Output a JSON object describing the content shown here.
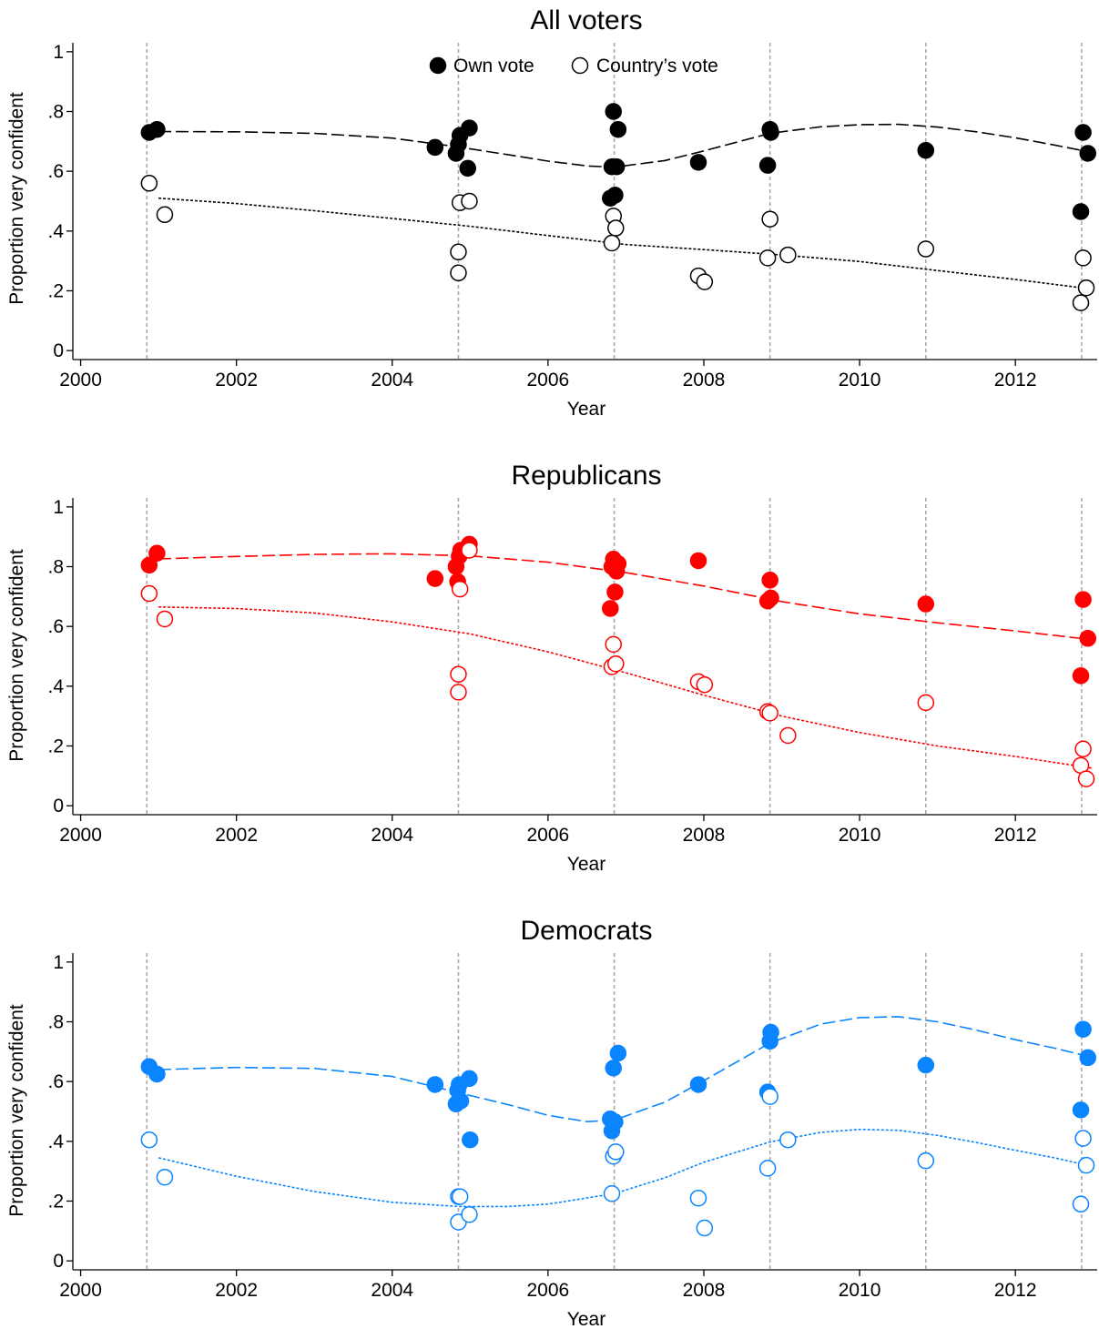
{
  "chart_data": [
    {
      "type": "scatter",
      "title": "All voters",
      "xlabel": "Year",
      "ylabel": "Proportion very confident",
      "xlim": [
        1999.9,
        2013.05
      ],
      "ylim": [
        -0.03,
        1.03
      ],
      "xticks": [
        2000,
        2002,
        2004,
        2006,
        2008,
        2010,
        2012
      ],
      "xtick_labels": [
        "2000",
        "2002",
        "2004",
        "2006",
        "2008",
        "2010",
        "2012"
      ],
      "yticks": [
        0,
        0.2,
        0.4,
        0.6,
        0.8,
        1
      ],
      "ytick_labels": [
        "0",
        ".2",
        ".4",
        ".6",
        ".8",
        "1"
      ],
      "election_lines": [
        2000.85,
        2004.85,
        2006.85,
        2008.85,
        2010.85,
        2012.85
      ],
      "colors": {
        "own": "#000000",
        "country": "#000000"
      },
      "legend": {
        "placement": "top-center",
        "entries": [
          "Own vote",
          "Country’s vote"
        ]
      },
      "series": [
        {
          "name": "Own vote",
          "marker": "filled",
          "x": [
            2000.88,
            2000.98,
            2004.55,
            2004.82,
            2004.85,
            2004.87,
            2004.97,
            2004.99,
            2006.8,
            2006.82,
            2006.84,
            2006.86,
            2006.88,
            2006.9,
            2007.93,
            2008.82,
            2008.85,
            2008.86,
            2010.85,
            2012.84,
            2012.87,
            2012.93
          ],
          "y": [
            0.73,
            0.74,
            0.68,
            0.66,
            0.69,
            0.72,
            0.61,
            0.745,
            0.51,
            0.615,
            0.8,
            0.52,
            0.615,
            0.74,
            0.63,
            0.62,
            0.74,
            0.73,
            0.67,
            0.465,
            0.73,
            0.66
          ]
        },
        {
          "name": "Country’s vote",
          "marker": "hollow",
          "x": [
            2000.88,
            2001.08,
            2004.85,
            2004.85,
            2004.87,
            2004.99,
            2006.82,
            2006.84,
            2006.87,
            2007.93,
            2008.01,
            2008.82,
            2008.85,
            2009.08,
            2010.85,
            2012.84,
            2012.87,
            2012.91
          ],
          "y": [
            0.56,
            0.455,
            0.26,
            0.33,
            0.495,
            0.5,
            0.36,
            0.45,
            0.41,
            0.25,
            0.23,
            0.31,
            0.44,
            0.32,
            0.34,
            0.16,
            0.31,
            0.21
          ]
        }
      ],
      "fit_lines": [
        {
          "series": "Own vote",
          "style": "long-dash",
          "x": [
            2001.0,
            2002.0,
            2003.0,
            2004.0,
            2004.8,
            2005.5,
            2006.0,
            2006.5,
            2006.85,
            2007.5,
            2008.0,
            2008.85,
            2009.5,
            2010.0,
            2010.5,
            2011.0,
            2011.5,
            2012.0,
            2012.5,
            2013.0
          ],
          "y": [
            0.733,
            0.732,
            0.727,
            0.711,
            0.683,
            0.655,
            0.634,
            0.618,
            0.614,
            0.636,
            0.668,
            0.727,
            0.749,
            0.756,
            0.757,
            0.748,
            0.732,
            0.712,
            0.688,
            0.662
          ]
        },
        {
          "series": "Country’s vote",
          "style": "dotted",
          "x": [
            2001.0,
            2002.0,
            2003.0,
            2004.0,
            2005.0,
            2006.0,
            2007.0,
            2008.0,
            2009.0,
            2010.0,
            2011.0,
            2012.0,
            2013.0
          ],
          "y": [
            0.51,
            0.492,
            0.468,
            0.442,
            0.416,
            0.385,
            0.355,
            0.338,
            0.32,
            0.298,
            0.268,
            0.238,
            0.205
          ]
        }
      ]
    },
    {
      "type": "scatter",
      "title": "Republicans",
      "xlabel": "Year",
      "ylabel": "Proportion very confident",
      "xlim": [
        1999.9,
        2013.05
      ],
      "ylim": [
        -0.03,
        1.03
      ],
      "xticks": [
        2000,
        2002,
        2004,
        2006,
        2008,
        2010,
        2012
      ],
      "xtick_labels": [
        "2000",
        "2002",
        "2004",
        "2006",
        "2008",
        "2010",
        "2012"
      ],
      "yticks": [
        0,
        0.2,
        0.4,
        0.6,
        0.8,
        1
      ],
      "ytick_labels": [
        "0",
        ".2",
        ".4",
        ".6",
        ".8",
        "1"
      ],
      "election_lines": [
        2000.85,
        2004.85,
        2006.85,
        2008.85,
        2010.85,
        2012.85
      ],
      "colors": {
        "own": "#ff0000",
        "country": "#ff0000"
      },
      "series": [
        {
          "name": "Own vote",
          "marker": "filled",
          "x": [
            2000.88,
            2000.98,
            2004.55,
            2004.82,
            2004.84,
            2004.86,
            2004.88,
            2004.99,
            2006.8,
            2006.82,
            2006.84,
            2006.86,
            2006.88,
            2006.9,
            2007.93,
            2008.82,
            2008.85,
            2008.86,
            2010.85,
            2012.84,
            2012.87,
            2012.93
          ],
          "y": [
            0.805,
            0.845,
            0.76,
            0.8,
            0.75,
            0.835,
            0.855,
            0.875,
            0.66,
            0.8,
            0.825,
            0.715,
            0.785,
            0.81,
            0.82,
            0.685,
            0.755,
            0.695,
            0.675,
            0.435,
            0.69,
            0.56
          ]
        },
        {
          "name": "Country’s vote",
          "marker": "hollow",
          "x": [
            2000.88,
            2001.08,
            2004.85,
            2004.85,
            2004.87,
            2004.99,
            2006.82,
            2006.84,
            2006.87,
            2007.93,
            2008.01,
            2008.82,
            2008.85,
            2009.08,
            2010.85,
            2012.84,
            2012.87,
            2012.91
          ],
          "y": [
            0.71,
            0.625,
            0.38,
            0.44,
            0.725,
            0.855,
            0.465,
            0.54,
            0.475,
            0.415,
            0.405,
            0.315,
            0.31,
            0.235,
            0.345,
            0.135,
            0.19,
            0.09
          ]
        }
      ],
      "fit_lines": [
        {
          "series": "Own vote",
          "style": "long-dash",
          "x": [
            2001.0,
            2002.0,
            2003.0,
            2004.0,
            2005.0,
            2006.0,
            2007.0,
            2008.0,
            2009.0,
            2010.0,
            2011.0,
            2012.0,
            2013.0
          ],
          "y": [
            0.826,
            0.834,
            0.841,
            0.843,
            0.836,
            0.815,
            0.78,
            0.735,
            0.683,
            0.642,
            0.612,
            0.585,
            0.555
          ]
        },
        {
          "series": "Country’s vote",
          "style": "dotted",
          "x": [
            2001.0,
            2002.0,
            2003.0,
            2004.0,
            2005.0,
            2006.0,
            2007.0,
            2008.0,
            2009.0,
            2010.0,
            2011.0,
            2012.0,
            2013.0
          ],
          "y": [
            0.665,
            0.66,
            0.645,
            0.615,
            0.575,
            0.515,
            0.445,
            0.37,
            0.3,
            0.245,
            0.2,
            0.165,
            0.125
          ]
        }
      ]
    },
    {
      "type": "scatter",
      "title": "Democrats",
      "xlabel": "Year",
      "ylabel": "Proportion very confident",
      "xlim": [
        1999.9,
        2013.05
      ],
      "ylim": [
        -0.03,
        1.03
      ],
      "xticks": [
        2000,
        2002,
        2004,
        2006,
        2008,
        2010,
        2012
      ],
      "xtick_labels": [
        "2000",
        "2002",
        "2004",
        "2006",
        "2008",
        "2010",
        "2012"
      ],
      "yticks": [
        0,
        0.2,
        0.4,
        0.6,
        0.8,
        1
      ],
      "ytick_labels": [
        "0",
        ".2",
        ".4",
        ".6",
        ".8",
        "1"
      ],
      "election_lines": [
        2000.85,
        2004.85,
        2006.85,
        2008.85,
        2010.85,
        2012.85
      ],
      "colors": {
        "own": "#0a84ff",
        "country": "#0a84ff"
      },
      "series": [
        {
          "name": "Own vote",
          "marker": "filled",
          "x": [
            2000.88,
            2000.98,
            2004.55,
            2004.82,
            2004.84,
            2004.86,
            2004.88,
            2004.99,
            2005.0,
            2006.8,
            2006.82,
            2006.84,
            2006.86,
            2006.9,
            2007.93,
            2008.82,
            2008.85,
            2008.86,
            2010.85,
            2012.84,
            2012.87,
            2012.93
          ],
          "y": [
            0.65,
            0.625,
            0.59,
            0.525,
            0.57,
            0.59,
            0.535,
            0.61,
            0.405,
            0.475,
            0.435,
            0.645,
            0.465,
            0.695,
            0.59,
            0.565,
            0.735,
            0.765,
            0.655,
            0.505,
            0.775,
            0.68
          ]
        },
        {
          "name": "Country’s vote",
          "marker": "hollow",
          "x": [
            2000.88,
            2001.08,
            2004.85,
            2004.85,
            2004.87,
            2004.99,
            2006.82,
            2006.84,
            2006.87,
            2007.93,
            2008.01,
            2008.82,
            2008.85,
            2009.08,
            2010.85,
            2012.84,
            2012.87,
            2012.91
          ],
          "y": [
            0.405,
            0.28,
            0.13,
            0.215,
            0.215,
            0.155,
            0.225,
            0.35,
            0.365,
            0.21,
            0.11,
            0.31,
            0.55,
            0.405,
            0.335,
            0.19,
            0.41,
            0.32
          ]
        }
      ],
      "fit_lines": [
        {
          "series": "Own vote",
          "style": "long-dash",
          "x": [
            2001.0,
            2002.0,
            2003.0,
            2004.0,
            2004.8,
            2005.5,
            2006.0,
            2006.5,
            2006.85,
            2007.5,
            2008.0,
            2008.85,
            2009.5,
            2010.0,
            2010.5,
            2011.0,
            2011.5,
            2012.0,
            2012.5,
            2013.0
          ],
          "y": [
            0.64,
            0.647,
            0.644,
            0.617,
            0.566,
            0.522,
            0.487,
            0.466,
            0.471,
            0.531,
            0.603,
            0.729,
            0.792,
            0.814,
            0.817,
            0.8,
            0.772,
            0.74,
            0.712,
            0.68
          ]
        },
        {
          "series": "Country’s vote",
          "style": "dotted",
          "x": [
            2001.0,
            2002.0,
            2003.0,
            2004.0,
            2004.85,
            2005.5,
            2006.0,
            2006.85,
            2007.5,
            2008.0,
            2008.85,
            2009.5,
            2010.0,
            2010.5,
            2011.0,
            2011.5,
            2012.0,
            2012.5,
            2013.0
          ],
          "y": [
            0.345,
            0.283,
            0.232,
            0.196,
            0.182,
            0.182,
            0.19,
            0.225,
            0.278,
            0.33,
            0.398,
            0.43,
            0.44,
            0.437,
            0.42,
            0.396,
            0.37,
            0.345,
            0.315
          ]
        }
      ]
    }
  ]
}
